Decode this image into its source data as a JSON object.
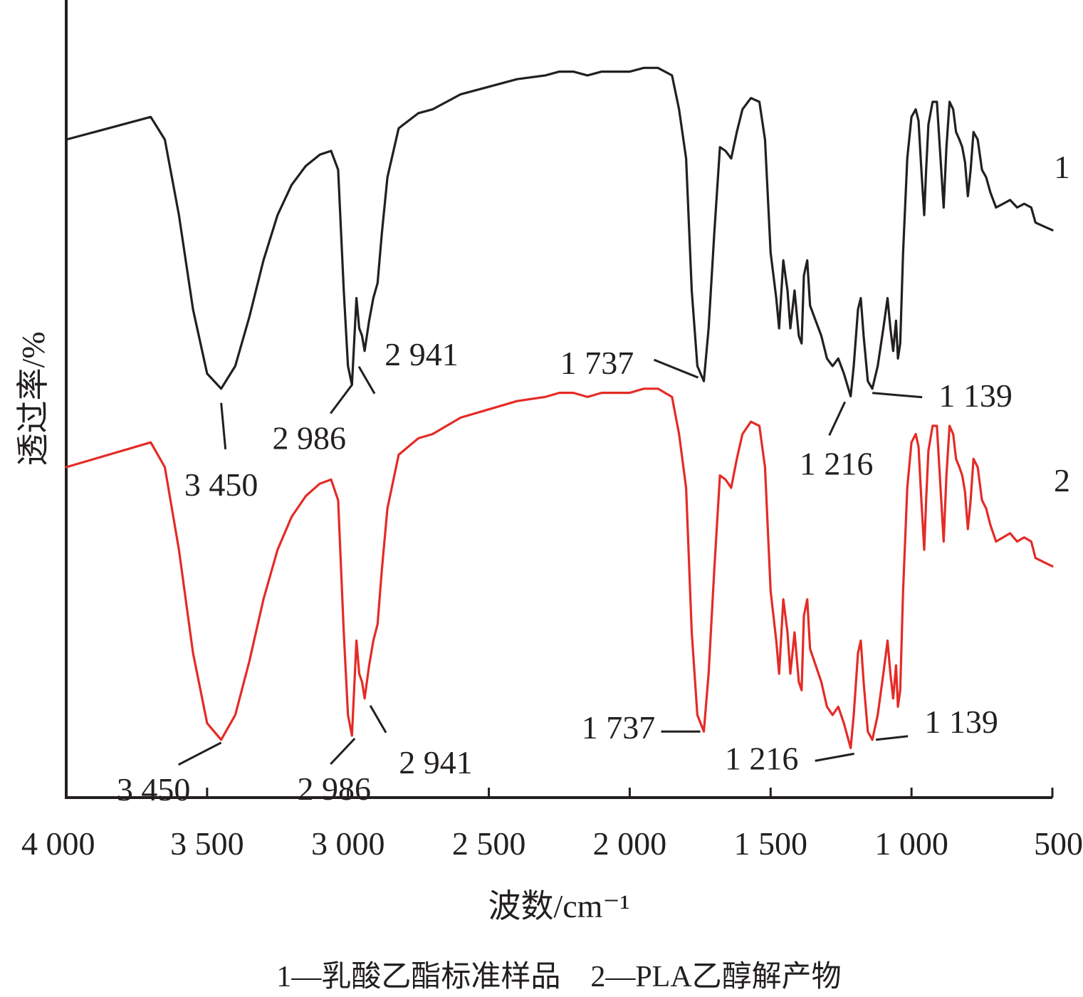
{
  "chart_data": {
    "type": "line",
    "xlabel": "波数/cm⁻¹",
    "ylabel": "透过率/%",
    "x_reversed": true,
    "xlim": [
      4000,
      500
    ],
    "xticks": [
      4000,
      3500,
      3000,
      2500,
      2000,
      1500,
      1000,
      500
    ],
    "xtick_labels": [
      "4 000",
      "3 500",
      "3 000",
      "2 500",
      "2 000",
      "1 500",
      "1 000",
      "500"
    ],
    "y_ticks_shown": false,
    "grid": false,
    "legend_text": "1—乳酸乙酯标准样品    2—PLA乙醇解产物",
    "series": [
      {
        "name": "1",
        "color": "#231f20",
        "points": [
          [
            4000,
            80
          ],
          [
            3900,
            82
          ],
          [
            3800,
            84
          ],
          [
            3700,
            86
          ],
          [
            3650,
            80
          ],
          [
            3600,
            60
          ],
          [
            3550,
            35
          ],
          [
            3500,
            18
          ],
          [
            3450,
            14
          ],
          [
            3400,
            20
          ],
          [
            3350,
            33
          ],
          [
            3300,
            48
          ],
          [
            3250,
            60
          ],
          [
            3200,
            68
          ],
          [
            3150,
            73
          ],
          [
            3100,
            76
          ],
          [
            3060,
            77
          ],
          [
            3035,
            72
          ],
          [
            3015,
            40
          ],
          [
            3000,
            20
          ],
          [
            2986,
            15
          ],
          [
            2970,
            38
          ],
          [
            2960,
            30
          ],
          [
            2950,
            28
          ],
          [
            2941,
            24
          ],
          [
            2925,
            32
          ],
          [
            2910,
            38
          ],
          [
            2895,
            42
          ],
          [
            2880,
            55
          ],
          [
            2860,
            70
          ],
          [
            2820,
            83
          ],
          [
            2750,
            87
          ],
          [
            2700,
            88
          ],
          [
            2650,
            90
          ],
          [
            2600,
            92
          ],
          [
            2500,
            94
          ],
          [
            2400,
            96
          ],
          [
            2300,
            97
          ],
          [
            2250,
            98
          ],
          [
            2200,
            98
          ],
          [
            2150,
            97
          ],
          [
            2100,
            98
          ],
          [
            2050,
            98
          ],
          [
            2000,
            98
          ],
          [
            1950,
            99
          ],
          [
            1900,
            99
          ],
          [
            1850,
            97
          ],
          [
            1825,
            88
          ],
          [
            1800,
            75
          ],
          [
            1780,
            40
          ],
          [
            1760,
            20
          ],
          [
            1737,
            16
          ],
          [
            1720,
            30
          ],
          [
            1700,
            55
          ],
          [
            1680,
            78
          ],
          [
            1660,
            77
          ],
          [
            1640,
            75
          ],
          [
            1620,
            82
          ],
          [
            1600,
            88
          ],
          [
            1570,
            91
          ],
          [
            1540,
            90
          ],
          [
            1520,
            80
          ],
          [
            1500,
            50
          ],
          [
            1480,
            38
          ],
          [
            1470,
            30
          ],
          [
            1455,
            48
          ],
          [
            1440,
            40
          ],
          [
            1430,
            30
          ],
          [
            1415,
            40
          ],
          [
            1400,
            28
          ],
          [
            1390,
            26
          ],
          [
            1382,
            44
          ],
          [
            1370,
            48
          ],
          [
            1360,
            36
          ],
          [
            1340,
            32
          ],
          [
            1320,
            28
          ],
          [
            1300,
            22
          ],
          [
            1280,
            20
          ],
          [
            1260,
            22
          ],
          [
            1240,
            18
          ],
          [
            1216,
            12
          ],
          [
            1205,
            20
          ],
          [
            1190,
            35
          ],
          [
            1180,
            38
          ],
          [
            1170,
            28
          ],
          [
            1155,
            16
          ],
          [
            1139,
            14
          ],
          [
            1120,
            20
          ],
          [
            1100,
            30
          ],
          [
            1085,
            38
          ],
          [
            1075,
            30
          ],
          [
            1065,
            24
          ],
          [
            1055,
            32
          ],
          [
            1048,
            22
          ],
          [
            1040,
            26
          ],
          [
            1030,
            50
          ],
          [
            1015,
            75
          ],
          [
            1000,
            86
          ],
          [
            985,
            88
          ],
          [
            975,
            85
          ],
          [
            965,
            72
          ],
          [
            955,
            60
          ],
          [
            948,
            72
          ],
          [
            940,
            84
          ],
          [
            925,
            90
          ],
          [
            910,
            90
          ],
          [
            897,
            75
          ],
          [
            886,
            62
          ],
          [
            876,
            78
          ],
          [
            865,
            90
          ],
          [
            852,
            88
          ],
          [
            842,
            82
          ],
          [
            830,
            80
          ],
          [
            820,
            78
          ],
          [
            810,
            74
          ],
          [
            800,
            65
          ],
          [
            790,
            72
          ],
          [
            780,
            82
          ],
          [
            765,
            80
          ],
          [
            750,
            72
          ],
          [
            735,
            70
          ],
          [
            720,
            66
          ],
          [
            700,
            62
          ],
          [
            675,
            63
          ],
          [
            650,
            64
          ],
          [
            625,
            62
          ],
          [
            600,
            63
          ],
          [
            575,
            62
          ],
          [
            560,
            58
          ],
          [
            530,
            57
          ],
          [
            500,
            56
          ]
        ]
      },
      {
        "name": "2",
        "color": "#e42b26",
        "points": [
          [
            4000,
            80
          ],
          [
            3900,
            82
          ],
          [
            3800,
            84
          ],
          [
            3700,
            86
          ],
          [
            3650,
            80
          ],
          [
            3600,
            60
          ],
          [
            3550,
            35
          ],
          [
            3500,
            18
          ],
          [
            3450,
            14
          ],
          [
            3400,
            20
          ],
          [
            3350,
            33
          ],
          [
            3300,
            48
          ],
          [
            3250,
            60
          ],
          [
            3200,
            68
          ],
          [
            3150,
            73
          ],
          [
            3100,
            76
          ],
          [
            3060,
            77
          ],
          [
            3035,
            72
          ],
          [
            3015,
            40
          ],
          [
            3000,
            20
          ],
          [
            2986,
            15
          ],
          [
            2970,
            38
          ],
          [
            2960,
            30
          ],
          [
            2950,
            28
          ],
          [
            2941,
            24
          ],
          [
            2925,
            32
          ],
          [
            2910,
            38
          ],
          [
            2895,
            42
          ],
          [
            2880,
            55
          ],
          [
            2860,
            70
          ],
          [
            2820,
            83
          ],
          [
            2750,
            87
          ],
          [
            2700,
            88
          ],
          [
            2650,
            90
          ],
          [
            2600,
            92
          ],
          [
            2500,
            94
          ],
          [
            2400,
            96
          ],
          [
            2300,
            97
          ],
          [
            2250,
            98
          ],
          [
            2200,
            98
          ],
          [
            2150,
            97
          ],
          [
            2100,
            98
          ],
          [
            2050,
            98
          ],
          [
            2000,
            98
          ],
          [
            1950,
            99
          ],
          [
            1900,
            99
          ],
          [
            1850,
            97
          ],
          [
            1825,
            88
          ],
          [
            1800,
            75
          ],
          [
            1780,
            40
          ],
          [
            1760,
            20
          ],
          [
            1737,
            16
          ],
          [
            1720,
            30
          ],
          [
            1700,
            55
          ],
          [
            1680,
            78
          ],
          [
            1660,
            77
          ],
          [
            1640,
            75
          ],
          [
            1620,
            82
          ],
          [
            1600,
            88
          ],
          [
            1570,
            91
          ],
          [
            1540,
            90
          ],
          [
            1520,
            80
          ],
          [
            1500,
            50
          ],
          [
            1480,
            38
          ],
          [
            1470,
            30
          ],
          [
            1455,
            48
          ],
          [
            1440,
            40
          ],
          [
            1430,
            30
          ],
          [
            1415,
            40
          ],
          [
            1400,
            28
          ],
          [
            1390,
            26
          ],
          [
            1382,
            44
          ],
          [
            1370,
            48
          ],
          [
            1360,
            36
          ],
          [
            1340,
            32
          ],
          [
            1320,
            28
          ],
          [
            1300,
            22
          ],
          [
            1280,
            20
          ],
          [
            1260,
            22
          ],
          [
            1240,
            18
          ],
          [
            1216,
            12
          ],
          [
            1205,
            20
          ],
          [
            1190,
            35
          ],
          [
            1180,
            38
          ],
          [
            1170,
            28
          ],
          [
            1155,
            16
          ],
          [
            1139,
            14
          ],
          [
            1120,
            20
          ],
          [
            1100,
            30
          ],
          [
            1085,
            38
          ],
          [
            1075,
            30
          ],
          [
            1065,
            24
          ],
          [
            1055,
            32
          ],
          [
            1048,
            22
          ],
          [
            1040,
            26
          ],
          [
            1030,
            50
          ],
          [
            1015,
            75
          ],
          [
            1000,
            86
          ],
          [
            985,
            88
          ],
          [
            975,
            85
          ],
          [
            965,
            72
          ],
          [
            955,
            60
          ],
          [
            948,
            72
          ],
          [
            940,
            84
          ],
          [
            925,
            90
          ],
          [
            910,
            90
          ],
          [
            897,
            75
          ],
          [
            886,
            62
          ],
          [
            876,
            78
          ],
          [
            865,
            90
          ],
          [
            852,
            88
          ],
          [
            842,
            82
          ],
          [
            830,
            80
          ],
          [
            820,
            78
          ],
          [
            810,
            74
          ],
          [
            800,
            65
          ],
          [
            790,
            72
          ],
          [
            780,
            82
          ],
          [
            765,
            80
          ],
          [
            750,
            72
          ],
          [
            735,
            70
          ],
          [
            720,
            66
          ],
          [
            700,
            62
          ],
          [
            675,
            63
          ],
          [
            650,
            64
          ],
          [
            625,
            62
          ],
          [
            600,
            63
          ],
          [
            575,
            62
          ],
          [
            560,
            58
          ],
          [
            530,
            57
          ],
          [
            500,
            56
          ]
        ]
      }
    ],
    "peak_annotations": [
      {
        "series": "1",
        "x": 3450,
        "label": "3 450"
      },
      {
        "series": "1",
        "x": 2986,
        "label": "2 986"
      },
      {
        "series": "1",
        "x": 2941,
        "label": "2 941"
      },
      {
        "series": "1",
        "x": 1737,
        "label": "1 737"
      },
      {
        "series": "1",
        "x": 1216,
        "label": "1 216"
      },
      {
        "series": "1",
        "x": 1139,
        "label": "1 139"
      },
      {
        "series": "2",
        "x": 3450,
        "label": "3 450"
      },
      {
        "series": "2",
        "x": 2986,
        "label": "2 986"
      },
      {
        "series": "2",
        "x": 2941,
        "label": "2 941"
      },
      {
        "series": "2",
        "x": 1737,
        "label": "1 737"
      },
      {
        "series": "2",
        "x": 1216,
        "label": "1 216"
      },
      {
        "series": "2",
        "x": 1139,
        "label": "1 139"
      }
    ]
  }
}
